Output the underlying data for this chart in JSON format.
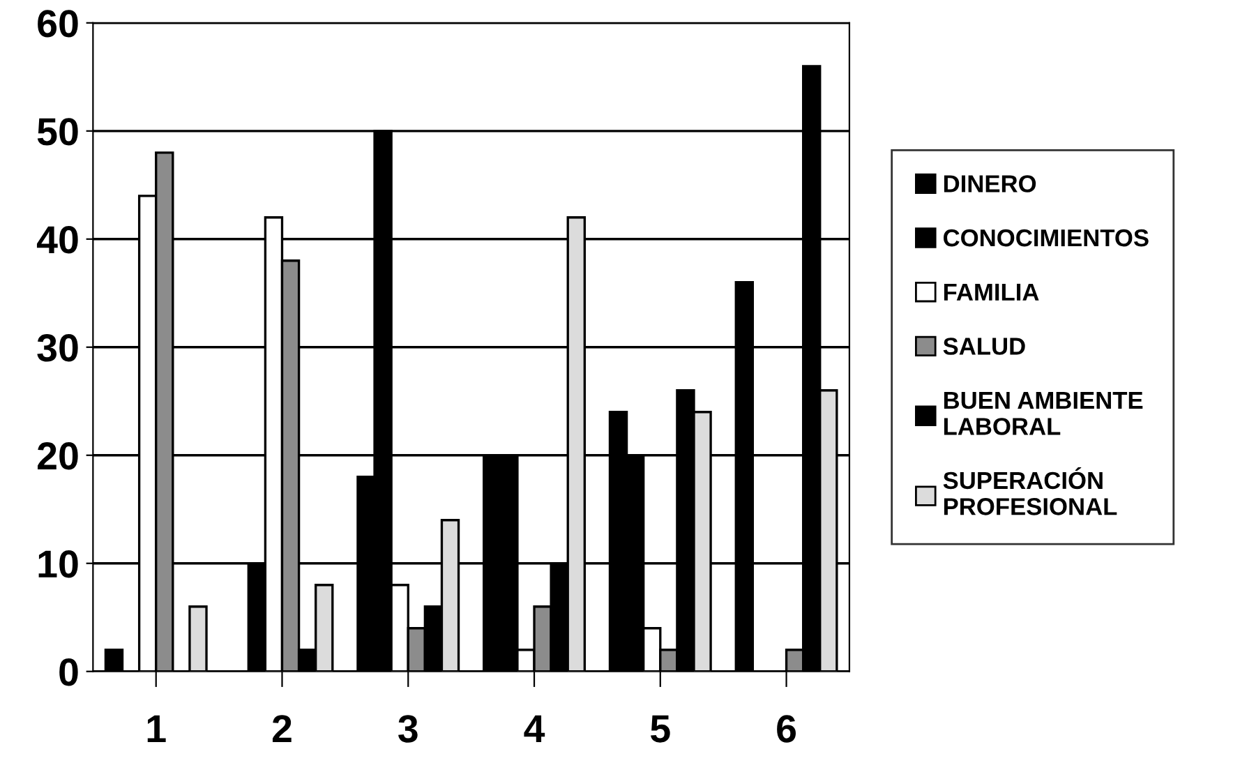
{
  "chart_data": {
    "type": "bar",
    "categories": [
      "1",
      "2",
      "3",
      "4",
      "5",
      "6"
    ],
    "series": [
      {
        "name": "DINERO",
        "color": "#000000",
        "values": [
          2,
          0,
          18,
          20,
          24,
          36
        ]
      },
      {
        "name": "CONOCIMIENTOS",
        "color": "#000000",
        "values": [
          0,
          10,
          50,
          20,
          20,
          0
        ]
      },
      {
        "name": "FAMILIA",
        "color": "#ffffff",
        "values": [
          44,
          42,
          8,
          2,
          4,
          0
        ]
      },
      {
        "name": "SALUD",
        "color": "#8c8c8c",
        "values": [
          48,
          38,
          4,
          6,
          2,
          2
        ]
      },
      {
        "name": "BUEN AMBIENTE\nLABORAL",
        "color": "#000000",
        "values": [
          0,
          2,
          6,
          10,
          26,
          56
        ]
      },
      {
        "name": "SUPERACIÓN\nPROFESIONAL",
        "color": "#dcdcdc",
        "values": [
          6,
          8,
          14,
          42,
          24,
          26
        ]
      }
    ],
    "ylim": [
      0,
      60
    ],
    "yticks": [
      0,
      10,
      20,
      30,
      40,
      50,
      60
    ],
    "grid": "y",
    "legend": "right"
  }
}
